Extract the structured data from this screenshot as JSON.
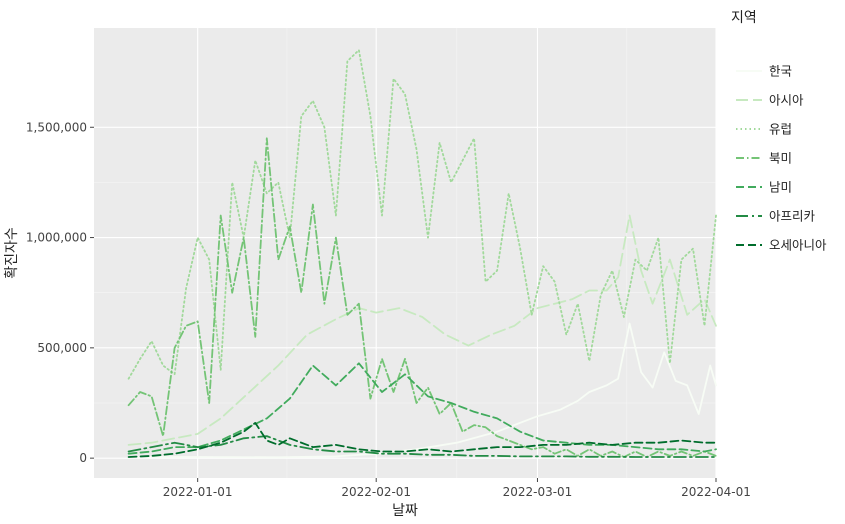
{
  "chart_data": {
    "type": "line",
    "title": "",
    "xlabel": "날짜",
    "ylabel": "확진자수",
    "legend_title": "지역",
    "legend_position": "right",
    "grid": true,
    "x_range": [
      "2021-12-14",
      "2022-04-01"
    ],
    "ylim": [
      -90000,
      1950000
    ],
    "x_ticks": [
      {
        "value": "2022-01-01",
        "label": "2022-01-01"
      },
      {
        "value": "2022-02-01",
        "label": "2022-02-01"
      },
      {
        "value": "2022-03-01",
        "label": "2022-03-01"
      },
      {
        "value": "2022-04-01",
        "label": "2022-04-01"
      }
    ],
    "y_ticks": [
      {
        "value": 0,
        "label": "0"
      },
      {
        "value": 500000,
        "label": "500,000"
      },
      {
        "value": 1000000,
        "label": "1,000,000"
      },
      {
        "value": 1500000,
        "label": "1,500,000"
      }
    ],
    "series": [
      {
        "name": "한국",
        "color": "#f7fcf5",
        "dash": "solid",
        "points": [
          [
            "2021-12-20",
            5000
          ],
          [
            "2022-01-01",
            5000
          ],
          [
            "2022-01-15",
            4000
          ],
          [
            "2022-01-25",
            8000
          ],
          [
            "2022-02-01",
            20000
          ],
          [
            "2022-02-08",
            40000
          ],
          [
            "2022-02-15",
            70000
          ],
          [
            "2022-02-22",
            120000
          ],
          [
            "2022-03-01",
            190000
          ],
          [
            "2022-03-05",
            220000
          ],
          [
            "2022-03-08",
            260000
          ],
          [
            "2022-03-10",
            300000
          ],
          [
            "2022-03-13",
            330000
          ],
          [
            "2022-03-15",
            360000
          ],
          [
            "2022-03-17",
            610000
          ],
          [
            "2022-03-19",
            390000
          ],
          [
            "2022-03-21",
            320000
          ],
          [
            "2022-03-23",
            480000
          ],
          [
            "2022-03-25",
            350000
          ],
          [
            "2022-03-27",
            330000
          ],
          [
            "2022-03-29",
            200000
          ],
          [
            "2022-03-31",
            420000
          ],
          [
            "2022-04-01",
            330000
          ]
        ]
      },
      {
        "name": "아시아",
        "color": "#c7e9c0",
        "dash": "longdash",
        "points": [
          [
            "2021-12-20",
            60000
          ],
          [
            "2021-12-24",
            70000
          ],
          [
            "2021-12-28",
            90000
          ],
          [
            "2022-01-01",
            110000
          ],
          [
            "2022-01-05",
            180000
          ],
          [
            "2022-01-10",
            300000
          ],
          [
            "2022-01-15",
            420000
          ],
          [
            "2022-01-20",
            560000
          ],
          [
            "2022-01-25",
            630000
          ],
          [
            "2022-01-29",
            680000
          ],
          [
            "2022-02-01",
            660000
          ],
          [
            "2022-02-05",
            680000
          ],
          [
            "2022-02-09",
            640000
          ],
          [
            "2022-02-13",
            560000
          ],
          [
            "2022-02-17",
            510000
          ],
          [
            "2022-02-21",
            560000
          ],
          [
            "2022-02-25",
            600000
          ],
          [
            "2022-03-01",
            680000
          ],
          [
            "2022-03-04",
            700000
          ],
          [
            "2022-03-07",
            720000
          ],
          [
            "2022-03-10",
            760000
          ],
          [
            "2022-03-13",
            760000
          ],
          [
            "2022-03-15",
            820000
          ],
          [
            "2022-03-17",
            1100000
          ],
          [
            "2022-03-19",
            850000
          ],
          [
            "2022-03-21",
            700000
          ],
          [
            "2022-03-24",
            900000
          ],
          [
            "2022-03-27",
            650000
          ],
          [
            "2022-03-30",
            720000
          ],
          [
            "2022-04-01",
            600000
          ]
        ]
      },
      {
        "name": "유럽",
        "color": "#a1d99b",
        "dash": "dotted",
        "points": [
          [
            "2021-12-20",
            360000
          ],
          [
            "2021-12-22",
            450000
          ],
          [
            "2021-12-24",
            530000
          ],
          [
            "2021-12-26",
            420000
          ],
          [
            "2021-12-28",
            380000
          ],
          [
            "2021-12-30",
            770000
          ],
          [
            "2022-01-01",
            1000000
          ],
          [
            "2022-01-03",
            900000
          ],
          [
            "2022-01-05",
            400000
          ],
          [
            "2022-01-07",
            1250000
          ],
          [
            "2022-01-09",
            1000000
          ],
          [
            "2022-01-11",
            1350000
          ],
          [
            "2022-01-13",
            1200000
          ],
          [
            "2022-01-15",
            1250000
          ],
          [
            "2022-01-17",
            1000000
          ],
          [
            "2022-01-19",
            1550000
          ],
          [
            "2022-01-21",
            1620000
          ],
          [
            "2022-01-23",
            1500000
          ],
          [
            "2022-01-25",
            1100000
          ],
          [
            "2022-01-27",
            1800000
          ],
          [
            "2022-01-29",
            1850000
          ],
          [
            "2022-01-31",
            1550000
          ],
          [
            "2022-02-02",
            1100000
          ],
          [
            "2022-02-04",
            1720000
          ],
          [
            "2022-02-06",
            1650000
          ],
          [
            "2022-02-08",
            1400000
          ],
          [
            "2022-02-10",
            1000000
          ],
          [
            "2022-02-12",
            1430000
          ],
          [
            "2022-02-14",
            1250000
          ],
          [
            "2022-02-16",
            1350000
          ],
          [
            "2022-02-18",
            1450000
          ],
          [
            "2022-02-20",
            800000
          ],
          [
            "2022-02-22",
            850000
          ],
          [
            "2022-02-24",
            1200000
          ],
          [
            "2022-02-26",
            950000
          ],
          [
            "2022-02-28",
            650000
          ],
          [
            "2022-03-02",
            870000
          ],
          [
            "2022-03-04",
            800000
          ],
          [
            "2022-03-06",
            560000
          ],
          [
            "2022-03-08",
            700000
          ],
          [
            "2022-03-10",
            440000
          ],
          [
            "2022-03-12",
            740000
          ],
          [
            "2022-03-14",
            850000
          ],
          [
            "2022-03-16",
            640000
          ],
          [
            "2022-03-18",
            900000
          ],
          [
            "2022-03-20",
            850000
          ],
          [
            "2022-03-22",
            1000000
          ],
          [
            "2022-03-24",
            430000
          ],
          [
            "2022-03-26",
            900000
          ],
          [
            "2022-03-28",
            950000
          ],
          [
            "2022-03-30",
            600000
          ],
          [
            "2022-04-01",
            1100000
          ]
        ]
      },
      {
        "name": "북미",
        "color": "#74c476",
        "dash": "dashdot",
        "points": [
          [
            "2021-12-20",
            240000
          ],
          [
            "2021-12-22",
            300000
          ],
          [
            "2021-12-24",
            280000
          ],
          [
            "2021-12-26",
            100000
          ],
          [
            "2021-12-28",
            500000
          ],
          [
            "2021-12-30",
            600000
          ],
          [
            "2022-01-01",
            620000
          ],
          [
            "2022-01-03",
            250000
          ],
          [
            "2022-01-05",
            1100000
          ],
          [
            "2022-01-07",
            750000
          ],
          [
            "2022-01-09",
            1000000
          ],
          [
            "2022-01-11",
            550000
          ],
          [
            "2022-01-13",
            1450000
          ],
          [
            "2022-01-15",
            900000
          ],
          [
            "2022-01-17",
            1050000
          ],
          [
            "2022-01-19",
            750000
          ],
          [
            "2022-01-21",
            1150000
          ],
          [
            "2022-01-23",
            700000
          ],
          [
            "2022-01-25",
            1000000
          ],
          [
            "2022-01-27",
            650000
          ],
          [
            "2022-01-29",
            700000
          ],
          [
            "2022-01-31",
            270000
          ],
          [
            "2022-02-02",
            450000
          ],
          [
            "2022-02-04",
            300000
          ],
          [
            "2022-02-06",
            450000
          ],
          [
            "2022-02-08",
            250000
          ],
          [
            "2022-02-10",
            320000
          ],
          [
            "2022-02-12",
            200000
          ],
          [
            "2022-02-14",
            250000
          ],
          [
            "2022-02-16",
            120000
          ],
          [
            "2022-02-18",
            150000
          ],
          [
            "2022-02-20",
            140000
          ],
          [
            "2022-02-22",
            100000
          ],
          [
            "2022-02-24",
            80000
          ],
          [
            "2022-02-26",
            60000
          ],
          [
            "2022-02-28",
            40000
          ],
          [
            "2022-03-02",
            50000
          ],
          [
            "2022-03-04",
            20000
          ],
          [
            "2022-03-06",
            40000
          ],
          [
            "2022-03-08",
            10000
          ],
          [
            "2022-03-10",
            40000
          ],
          [
            "2022-03-12",
            10000
          ],
          [
            "2022-03-14",
            30000
          ],
          [
            "2022-03-16",
            5000
          ],
          [
            "2022-03-18",
            30000
          ],
          [
            "2022-03-20",
            5000
          ],
          [
            "2022-03-22",
            30000
          ],
          [
            "2022-03-24",
            10000
          ],
          [
            "2022-03-26",
            30000
          ],
          [
            "2022-03-28",
            10000
          ],
          [
            "2022-03-30",
            30000
          ],
          [
            "2022-04-01",
            10000
          ]
        ]
      },
      {
        "name": "남미",
        "color": "#41ab5d",
        "dash": "dash",
        "points": [
          [
            "2021-12-20",
            20000
          ],
          [
            "2021-12-24",
            30000
          ],
          [
            "2021-12-28",
            50000
          ],
          [
            "2022-01-01",
            50000
          ],
          [
            "2022-01-05",
            80000
          ],
          [
            "2022-01-09",
            130000
          ],
          [
            "2022-01-13",
            180000
          ],
          [
            "2022-01-17",
            270000
          ],
          [
            "2022-01-21",
            420000
          ],
          [
            "2022-01-25",
            330000
          ],
          [
            "2022-01-29",
            430000
          ],
          [
            "2022-02-02",
            300000
          ],
          [
            "2022-02-06",
            380000
          ],
          [
            "2022-02-10",
            280000
          ],
          [
            "2022-02-14",
            250000
          ],
          [
            "2022-02-18",
            210000
          ],
          [
            "2022-02-22",
            180000
          ],
          [
            "2022-02-26",
            120000
          ],
          [
            "2022-03-02",
            80000
          ],
          [
            "2022-03-06",
            70000
          ],
          [
            "2022-03-10",
            60000
          ],
          [
            "2022-03-14",
            60000
          ],
          [
            "2022-03-18",
            50000
          ],
          [
            "2022-03-22",
            40000
          ],
          [
            "2022-03-26",
            40000
          ],
          [
            "2022-03-30",
            30000
          ],
          [
            "2022-04-01",
            40000
          ]
        ]
      },
      {
        "name": "아프리카",
        "color": "#238b45",
        "dash": "longdashdot",
        "points": [
          [
            "2021-12-20",
            30000
          ],
          [
            "2021-12-24",
            50000
          ],
          [
            "2021-12-28",
            70000
          ],
          [
            "2022-01-01",
            50000
          ],
          [
            "2022-01-05",
            60000
          ],
          [
            "2022-01-09",
            90000
          ],
          [
            "2022-01-13",
            100000
          ],
          [
            "2022-01-17",
            60000
          ],
          [
            "2022-01-21",
            40000
          ],
          [
            "2022-01-25",
            30000
          ],
          [
            "2022-01-29",
            30000
          ],
          [
            "2022-02-02",
            20000
          ],
          [
            "2022-02-06",
            20000
          ],
          [
            "2022-02-10",
            15000
          ],
          [
            "2022-02-14",
            15000
          ],
          [
            "2022-02-18",
            10000
          ],
          [
            "2022-02-22",
            10000
          ],
          [
            "2022-02-26",
            8000
          ],
          [
            "2022-03-02",
            8000
          ],
          [
            "2022-03-06",
            8000
          ],
          [
            "2022-03-10",
            6000
          ],
          [
            "2022-03-14",
            6000
          ],
          [
            "2022-03-18",
            5000
          ],
          [
            "2022-03-22",
            5000
          ],
          [
            "2022-03-26",
            5000
          ],
          [
            "2022-03-30",
            5000
          ],
          [
            "2022-04-01",
            5000
          ]
        ]
      },
      {
        "name": "오세아니아",
        "color": "#006d2c",
        "dash": "dash",
        "points": [
          [
            "2021-12-20",
            5000
          ],
          [
            "2021-12-24",
            10000
          ],
          [
            "2021-12-28",
            20000
          ],
          [
            "2022-01-01",
            40000
          ],
          [
            "2022-01-05",
            70000
          ],
          [
            "2022-01-09",
            120000
          ],
          [
            "2022-01-11",
            160000
          ],
          [
            "2022-01-13",
            80000
          ],
          [
            "2022-01-15",
            60000
          ],
          [
            "2022-01-17",
            90000
          ],
          [
            "2022-01-21",
            50000
          ],
          [
            "2022-01-25",
            60000
          ],
          [
            "2022-01-29",
            40000
          ],
          [
            "2022-02-02",
            30000
          ],
          [
            "2022-02-06",
            30000
          ],
          [
            "2022-02-10",
            40000
          ],
          [
            "2022-02-14",
            30000
          ],
          [
            "2022-02-18",
            40000
          ],
          [
            "2022-02-22",
            50000
          ],
          [
            "2022-02-26",
            50000
          ],
          [
            "2022-03-02",
            60000
          ],
          [
            "2022-03-06",
            60000
          ],
          [
            "2022-03-10",
            70000
          ],
          [
            "2022-03-14",
            60000
          ],
          [
            "2022-03-18",
            70000
          ],
          [
            "2022-03-22",
            70000
          ],
          [
            "2022-03-26",
            80000
          ],
          [
            "2022-03-30",
            70000
          ],
          [
            "2022-04-01",
            70000
          ]
        ]
      }
    ]
  }
}
